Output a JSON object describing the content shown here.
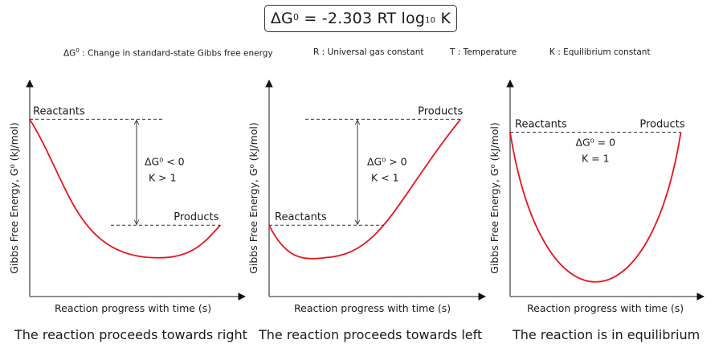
{
  "equation": {
    "delta_g": "ΔG",
    "sup": "0",
    "rhs_prefix": " = -2.303 RT log",
    "sub": "10",
    "rhs_suffix": " K"
  },
  "legend": [
    {
      "symbol": "ΔG",
      "sup": "0",
      "text": " : Change in standard-state Gibbs free energy"
    },
    {
      "symbol": "R",
      "sup": "",
      "text": " : Universal gas constant"
    },
    {
      "symbol": "T",
      "sup": "",
      "text": " : Temperature"
    },
    {
      "symbol": "K",
      "sup": "",
      "text": " : Equilibrium constant"
    }
  ],
  "colors": {
    "curve": "#e8141c",
    "axis": "#6b6b6b",
    "text": "#1a1a1a",
    "dashed": "#333333"
  },
  "axes": {
    "ylabel": "Gibbs Free Energy, G⁰ (kJ/mol)",
    "xlabel": "Reaction progress with time (s)"
  },
  "chart_data": [
    {
      "type": "line",
      "title": "The reaction proceeds towards right",
      "xlabel": "Reaction progress with time (s)",
      "ylabel": "Gibbs Free Energy, G⁰ (kJ/mol)",
      "reactants_label": "Reactants",
      "products_label": "Products",
      "delta_label": "ΔG⁰ < 0",
      "k_label": "K > 1",
      "reactants_level": 0.82,
      "products_level": 0.33,
      "minimum": {
        "x": 0.65,
        "y": 0.18
      },
      "products_x": 0.92
    },
    {
      "type": "line",
      "title": "The reaction proceeds towards left",
      "xlabel": "Reaction progress with time (s)",
      "ylabel": "Gibbs Free Energy, G⁰ (kJ/mol)",
      "reactants_label": "Reactants",
      "products_label": "Products",
      "delta_label": "ΔG⁰ > 0",
      "k_label": "K < 1",
      "reactants_level": 0.33,
      "products_level": 0.82,
      "minimum": {
        "x": 0.27,
        "y": 0.18
      },
      "products_x": 0.92
    },
    {
      "type": "line",
      "title": "The reaction is in equilibrium",
      "xlabel": "Reaction progress with time (s)",
      "ylabel": "Gibbs Free Energy, G⁰ (kJ/mol)",
      "reactants_label": "Reactants",
      "products_label": "Products",
      "delta_label": "ΔG⁰ = 0",
      "k_label": "K = 1",
      "reactants_level": 0.76,
      "products_level": 0.76,
      "minimum": {
        "x": 0.5,
        "y": 0.06
      },
      "products_x": 0.92
    }
  ]
}
